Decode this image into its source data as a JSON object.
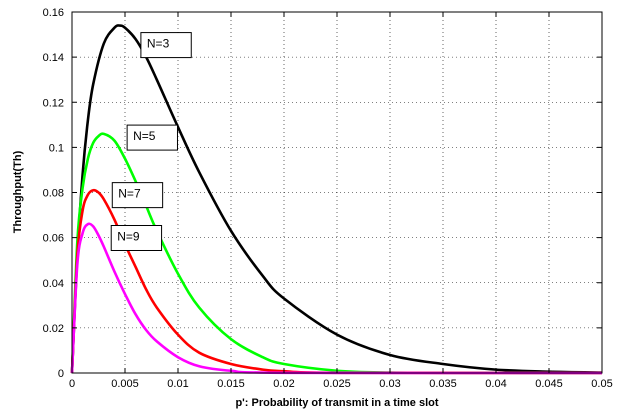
{
  "chart_data": {
    "type": "line",
    "title": "",
    "xlabel": "p': Probability of transmit in a time slot",
    "ylabel": "Throughput(Th)",
    "xlim": [
      0,
      0.05
    ],
    "ylim": [
      0,
      0.16
    ],
    "x_ticks": [
      0,
      0.005,
      0.01,
      0.015,
      0.02,
      0.025,
      0.03,
      0.035,
      0.04,
      0.045,
      0.05
    ],
    "x_tick_labels": [
      "0",
      "0.005",
      "0.01",
      "0.015",
      "0.02",
      "0.025",
      "0.03",
      "0.035",
      "0.04",
      "0.045",
      "0.05"
    ],
    "y_ticks": [
      0,
      0.02,
      0.04,
      0.06,
      0.08,
      0.1,
      0.12,
      0.14,
      0.16
    ],
    "y_tick_labels": [
      "0",
      "0.02",
      "0.04",
      "0.06",
      "0.08",
      "0.1",
      "0.12",
      "0.14",
      "0.16"
    ],
    "grid": true,
    "grid_style": "dotted",
    "legend": "none",
    "series": [
      {
        "name": "N=3",
        "color": "#000000",
        "x": [
          0,
          0.0005,
          0.001,
          0.0015,
          0.002,
          0.003,
          0.004,
          0.0045,
          0.005,
          0.006,
          0.007,
          0.008,
          0.01,
          0.012,
          0.015,
          0.018,
          0.02,
          0.025,
          0.03,
          0.035,
          0.04,
          0.045,
          0.05
        ],
        "y": [
          0,
          0.052,
          0.088,
          0.112,
          0.128,
          0.146,
          0.153,
          0.154,
          0.153,
          0.148,
          0.14,
          0.13,
          0.109,
          0.089,
          0.063,
          0.043,
          0.033,
          0.017,
          0.008,
          0.004,
          0.0015,
          0.0006,
          0.0002
        ]
      },
      {
        "name": "N=5",
        "color": "#00ff00",
        "x": [
          0,
          0.0005,
          0.001,
          0.0015,
          0.002,
          0.0025,
          0.003,
          0.004,
          0.005,
          0.006,
          0.007,
          0.008,
          0.01,
          0.012,
          0.015,
          0.018,
          0.02,
          0.025,
          0.03,
          0.035,
          0.05
        ],
        "y": [
          0,
          0.058,
          0.082,
          0.095,
          0.102,
          0.105,
          0.106,
          0.103,
          0.095,
          0.085,
          0.074,
          0.063,
          0.044,
          0.029,
          0.015,
          0.007,
          0.004,
          0.001,
          0.0002,
          0.0001,
          0
        ]
      },
      {
        "name": "N=7",
        "color": "#ff0000",
        "x": [
          0,
          0.0005,
          0.001,
          0.0015,
          0.002,
          0.0025,
          0.003,
          0.004,
          0.005,
          0.006,
          0.007,
          0.008,
          0.01,
          0.012,
          0.015,
          0.018,
          0.02,
          0.025,
          0.05
        ],
        "y": [
          0,
          0.052,
          0.072,
          0.079,
          0.081,
          0.08,
          0.077,
          0.068,
          0.057,
          0.047,
          0.037,
          0.029,
          0.017,
          0.009,
          0.004,
          0.0015,
          0.0008,
          0.0001,
          0
        ]
      },
      {
        "name": "N=9",
        "color": "#ff00ff",
        "x": [
          0,
          0.0005,
          0.001,
          0.0015,
          0.002,
          0.0025,
          0.003,
          0.004,
          0.005,
          0.006,
          0.007,
          0.008,
          0.01,
          0.012,
          0.015,
          0.02,
          0.05
        ],
        "y": [
          0,
          0.048,
          0.062,
          0.066,
          0.065,
          0.061,
          0.056,
          0.045,
          0.035,
          0.026,
          0.019,
          0.014,
          0.007,
          0.003,
          0.001,
          0.0001,
          0
        ]
      }
    ],
    "annotations": [
      {
        "text": "N=3",
        "x": 0.0065,
        "y": 0.146
      },
      {
        "text": "N=5",
        "x": 0.0052,
        "y": 0.105
      },
      {
        "text": "N=7",
        "x": 0.0038,
        "y": 0.0795
      },
      {
        "text": "N=9",
        "x": 0.0037,
        "y": 0.0605
      }
    ]
  }
}
